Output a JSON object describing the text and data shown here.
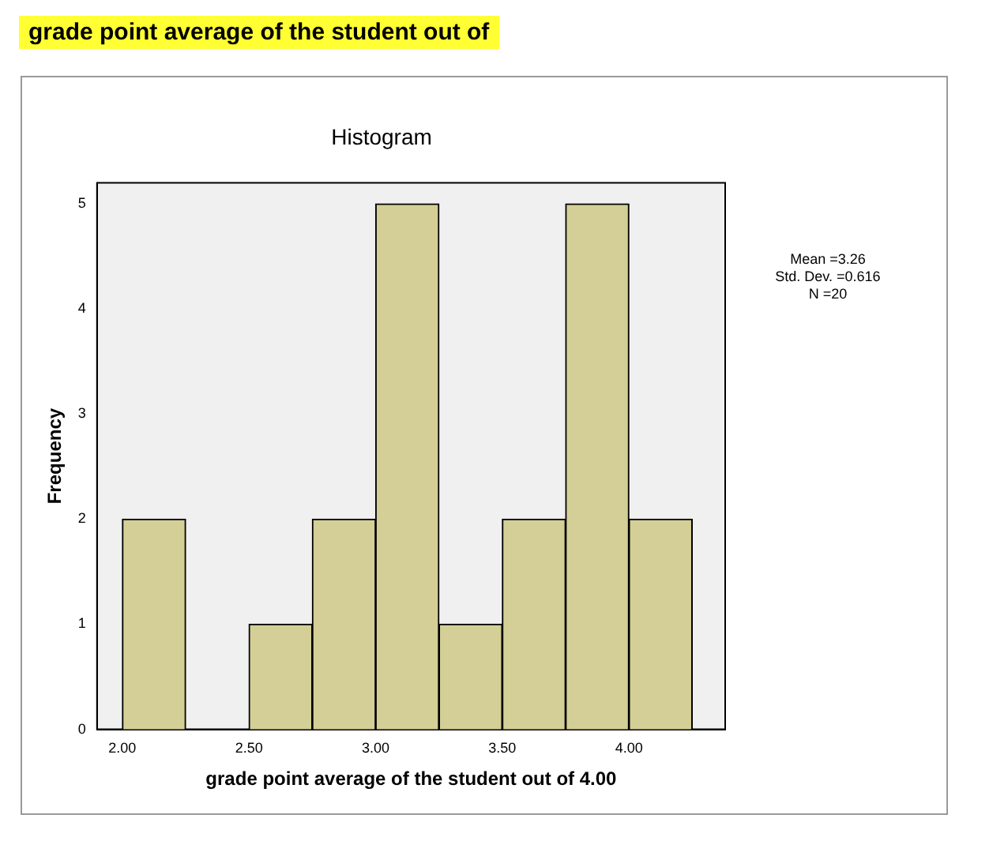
{
  "chart_data": {
    "type": "histogram",
    "title": "Histogram",
    "xlabel": "grade point average of the student out of 4.00",
    "ylabel": "Frequency",
    "bins": [
      2.0,
      2.25,
      2.5,
      2.75,
      3.0,
      3.25,
      3.5,
      3.75,
      4.0,
      4.25
    ],
    "values": [
      2,
      0,
      1,
      2,
      5,
      1,
      2,
      5,
      2
    ],
    "color": "#d4cf96",
    "xlim": [
      1.9,
      4.38
    ],
    "ylim": [
      0,
      5.2
    ],
    "xticks": [
      {
        "value": 2.0,
        "label": "2.00"
      },
      {
        "value": 2.5,
        "label": "2.50"
      },
      {
        "value": 3.0,
        "label": "3.00"
      },
      {
        "value": 3.5,
        "label": "3.50"
      },
      {
        "value": 4.0,
        "label": "4.00"
      }
    ],
    "yticks": [
      0,
      1,
      2,
      3,
      4,
      5
    ],
    "grid": false,
    "annotations": [
      "grade point average of the student out of",
      "Mean =3.26",
      "Std. Dev. =0.616",
      "N =20"
    ]
  }
}
